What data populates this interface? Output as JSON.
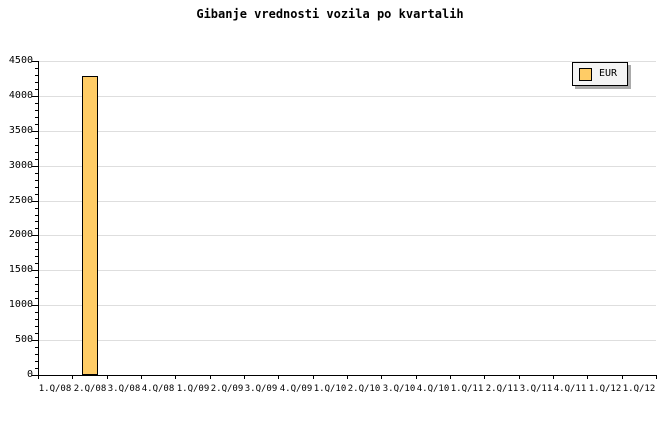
{
  "chart_data": {
    "type": "bar",
    "title": "Gibanje vrednosti vozila po kvartalih",
    "categories": [
      "1.Q/08",
      "2.Q/08",
      "3.Q/08",
      "4.Q/08",
      "1.Q/09",
      "2.Q/09",
      "3.Q/09",
      "4.Q/09",
      "1.Q/10",
      "2.Q/10",
      "3.Q/10",
      "4.Q/10",
      "1.Q/11",
      "2.Q/11",
      "3.Q/11",
      "4.Q/11",
      "1.Q/12",
      "1.Q/12"
    ],
    "series": [
      {
        "name": "EUR",
        "values": [
          null,
          4280,
          null,
          null,
          null,
          null,
          null,
          null,
          null,
          null,
          null,
          null,
          null,
          null,
          null,
          null,
          null,
          null
        ]
      }
    ],
    "xlabel": "",
    "ylabel": "",
    "ylim": [
      0,
      4500
    ],
    "ytick_step": 500,
    "yminor_step": 100,
    "grid": true,
    "legend_position": "top-right",
    "colors": {
      "bar_fill": "#FFCC66",
      "bar_border": "#000000",
      "grid": "#DEDEDE",
      "axis": "#000000",
      "text": "#000000",
      "background": "#FFFFFF",
      "legend_bg": "#F4F4F4",
      "legend_shadow": "#AAAAAA"
    }
  }
}
